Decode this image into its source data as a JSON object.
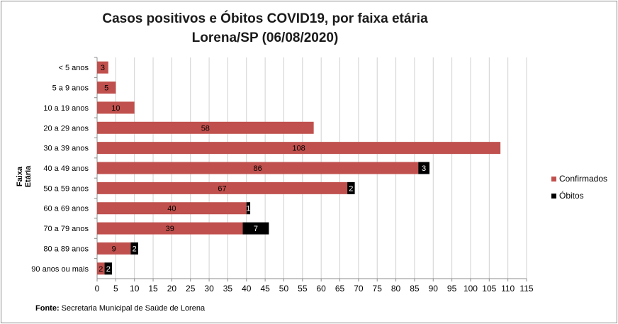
{
  "chart_data": {
    "type": "bar",
    "orientation": "horizontal",
    "stacked": true,
    "title_line1": "Casos positivos  e Óbitos COVID19, por faixa etária",
    "title_line2": "Lorena/SP (06/08/2020)",
    "ylabel": "Faixa Etária",
    "xlim": [
      0,
      115
    ],
    "x_tick_step": 5,
    "grid": "vertical",
    "legend_position": "right",
    "categories": [
      "< 5 anos",
      "5 a 9 anos",
      "10 a 19 anos",
      "20 a 29 anos",
      "30 a 39 anos",
      "40 a 49 anos",
      "50 a 59 anos",
      "60 a 69 anos",
      "70 a 79 anos",
      "80 a 89 anos",
      "90 anos ou mais"
    ],
    "series": [
      {
        "name": "Confirmados",
        "color": "#c0504d",
        "values": [
          3,
          5,
          10,
          58,
          108,
          86,
          67,
          40,
          39,
          9,
          2
        ]
      },
      {
        "name": "Óbitos",
        "color": "#000000",
        "values": [
          0,
          0,
          0,
          0,
          0,
          3,
          2,
          1,
          7,
          2,
          2
        ]
      }
    ]
  },
  "source": {
    "label": "Fonte:",
    "text": " Secretaria Municipal de Saúde de Lorena"
  }
}
